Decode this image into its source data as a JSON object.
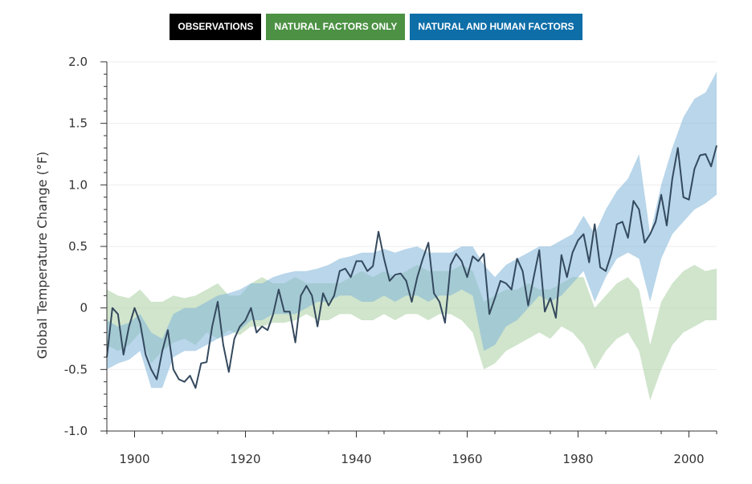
{
  "legend": [
    {
      "label": "OBSERVATIONS",
      "color": "#000000"
    },
    {
      "label": "NATURAL FACTORS ONLY",
      "color": "#4c9144"
    },
    {
      "label": "NATURAL AND HUMAN FACTORS",
      "color": "#0e6ea8"
    }
  ],
  "chart_data": {
    "type": "line",
    "title": "",
    "xlabel": "",
    "ylabel": "Global Temperature Change (°F)",
    "xlim": [
      1895,
      2005
    ],
    "ylim": [
      -1.0,
      2.0
    ],
    "xticks": [
      1900,
      1920,
      1940,
      1960,
      1980,
      2000
    ],
    "yticks": [
      2.0,
      1.5,
      1.0,
      0.5,
      0,
      -0.5,
      -1.0
    ],
    "ytick_labels": [
      "2.0",
      "1.5",
      "1.0",
      "0.5",
      "0",
      "-0.5",
      "-1.0"
    ],
    "grid": true,
    "colors": {
      "observations": "#34495e",
      "natural_band": "#a9cfa3",
      "combined_band": "#7fb4d9"
    },
    "series": [
      {
        "name": "OBSERVATIONS",
        "kind": "line",
        "x": [
          1895,
          1896,
          1897,
          1898,
          1899,
          1900,
          1901,
          1902,
          1903,
          1904,
          1905,
          1906,
          1907,
          1908,
          1909,
          1910,
          1911,
          1912,
          1913,
          1914,
          1915,
          1916,
          1917,
          1918,
          1919,
          1920,
          1921,
          1922,
          1923,
          1924,
          1925,
          1926,
          1927,
          1928,
          1929,
          1930,
          1931,
          1932,
          1933,
          1934,
          1935,
          1936,
          1937,
          1938,
          1939,
          1940,
          1941,
          1942,
          1943,
          1944,
          1945,
          1946,
          1947,
          1948,
          1949,
          1950,
          1951,
          1952,
          1953,
          1954,
          1955,
          1956,
          1957,
          1958,
          1959,
          1960,
          1961,
          1962,
          1963,
          1964,
          1965,
          1966,
          1967,
          1968,
          1969,
          1970,
          1971,
          1972,
          1973,
          1974,
          1975,
          1976,
          1977,
          1978,
          1979,
          1980,
          1981,
          1982,
          1983,
          1984,
          1985,
          1986,
          1987,
          1988,
          1989,
          1990,
          1991,
          1992,
          1993,
          1994,
          1995,
          1996,
          1997,
          1998,
          1999,
          2000,
          2001,
          2002,
          2003,
          2004,
          2005
        ],
        "y": [
          -0.4,
          0.0,
          -0.05,
          -0.38,
          -0.15,
          0.0,
          -0.12,
          -0.38,
          -0.5,
          -0.58,
          -0.35,
          -0.18,
          -0.5,
          -0.58,
          -0.6,
          -0.55,
          -0.65,
          -0.45,
          -0.44,
          -0.15,
          0.05,
          -0.3,
          -0.52,
          -0.25,
          -0.15,
          -0.1,
          0.0,
          -0.2,
          -0.15,
          -0.18,
          -0.05,
          0.15,
          -0.03,
          -0.03,
          -0.28,
          0.1,
          0.18,
          0.1,
          -0.15,
          0.12,
          0.02,
          0.1,
          0.3,
          0.32,
          0.25,
          0.38,
          0.38,
          0.3,
          0.34,
          0.62,
          0.4,
          0.22,
          0.27,
          0.28,
          0.22,
          0.05,
          0.25,
          0.4,
          0.53,
          0.12,
          0.05,
          -0.12,
          0.35,
          0.44,
          0.38,
          0.25,
          0.42,
          0.38,
          0.44,
          -0.05,
          0.08,
          0.22,
          0.2,
          0.15,
          0.4,
          0.3,
          0.02,
          0.25,
          0.47,
          -0.03,
          0.08,
          -0.08,
          0.43,
          0.25,
          0.45,
          0.55,
          0.6,
          0.37,
          0.68,
          0.33,
          0.3,
          0.44,
          0.68,
          0.7,
          0.57,
          0.87,
          0.8,
          0.53,
          0.6,
          0.7,
          0.92,
          0.67,
          1.05,
          1.3,
          0.9,
          0.88,
          1.13,
          1.24,
          1.25,
          1.15,
          1.32
        ]
      },
      {
        "name": "NATURAL FACTORS ONLY",
        "kind": "band",
        "x": [
          1895,
          1897,
          1899,
          1901,
          1903,
          1905,
          1907,
          1909,
          1911,
          1913,
          1915,
          1917,
          1919,
          1921,
          1923,
          1925,
          1927,
          1929,
          1931,
          1933,
          1935,
          1937,
          1939,
          1941,
          1943,
          1945,
          1947,
          1949,
          1951,
          1953,
          1955,
          1957,
          1959,
          1961,
          1963,
          1965,
          1967,
          1969,
          1971,
          1973,
          1975,
          1977,
          1979,
          1981,
          1983,
          1985,
          1987,
          1989,
          1991,
          1993,
          1995,
          1997,
          1999,
          2001,
          2003,
          2005
        ],
        "lower": [
          -0.3,
          -0.35,
          -0.3,
          -0.2,
          -0.45,
          -0.35,
          -0.28,
          -0.25,
          -0.3,
          -0.2,
          -0.25,
          -0.18,
          -0.22,
          -0.15,
          -0.15,
          -0.12,
          -0.12,
          -0.1,
          -0.05,
          -0.1,
          -0.1,
          -0.05,
          -0.05,
          -0.1,
          -0.1,
          -0.05,
          -0.1,
          -0.05,
          -0.05,
          -0.1,
          -0.05,
          -0.05,
          -0.1,
          -0.2,
          -0.5,
          -0.45,
          -0.35,
          -0.3,
          -0.25,
          -0.2,
          -0.25,
          -0.15,
          -0.2,
          -0.3,
          -0.5,
          -0.35,
          -0.25,
          -0.2,
          -0.35,
          -0.75,
          -0.5,
          -0.3,
          -0.2,
          -0.15,
          -0.1,
          -0.1
        ],
        "upper": [
          0.15,
          0.1,
          0.08,
          0.15,
          0.05,
          0.05,
          0.1,
          0.08,
          0.1,
          0.15,
          0.2,
          0.1,
          0.1,
          0.2,
          0.25,
          0.2,
          0.2,
          0.25,
          0.2,
          0.2,
          0.2,
          0.2,
          0.25,
          0.3,
          0.25,
          0.3,
          0.25,
          0.3,
          0.35,
          0.3,
          0.3,
          0.3,
          0.35,
          0.3,
          0.05,
          0.1,
          0.15,
          0.15,
          0.2,
          0.15,
          0.15,
          0.2,
          0.25,
          0.25,
          0.0,
          0.1,
          0.2,
          0.25,
          0.15,
          -0.3,
          0.05,
          0.2,
          0.3,
          0.35,
          0.3,
          0.32
        ]
      },
      {
        "name": "NATURAL AND HUMAN FACTORS",
        "kind": "band",
        "x": [
          1895,
          1897,
          1899,
          1901,
          1903,
          1905,
          1907,
          1909,
          1911,
          1913,
          1915,
          1917,
          1919,
          1921,
          1923,
          1925,
          1927,
          1929,
          1931,
          1933,
          1935,
          1937,
          1939,
          1941,
          1943,
          1945,
          1947,
          1949,
          1951,
          1953,
          1955,
          1957,
          1959,
          1961,
          1963,
          1965,
          1967,
          1969,
          1971,
          1973,
          1975,
          1977,
          1979,
          1981,
          1983,
          1985,
          1987,
          1989,
          1991,
          1993,
          1995,
          1997,
          1999,
          2001,
          2003,
          2005
        ],
        "lower": [
          -0.5,
          -0.45,
          -0.42,
          -0.35,
          -0.65,
          -0.65,
          -0.4,
          -0.35,
          -0.35,
          -0.3,
          -0.25,
          -0.22,
          -0.18,
          -0.1,
          -0.1,
          -0.05,
          -0.05,
          -0.05,
          0.0,
          0.05,
          0.05,
          0.1,
          0.1,
          0.05,
          0.05,
          0.1,
          0.05,
          0.1,
          0.1,
          0.05,
          0.1,
          0.1,
          0.15,
          0.1,
          -0.35,
          -0.3,
          -0.15,
          -0.1,
          0.0,
          0.1,
          0.05,
          0.1,
          0.2,
          0.3,
          0.05,
          0.25,
          0.4,
          0.45,
          0.4,
          0.05,
          0.4,
          0.6,
          0.7,
          0.8,
          0.85,
          0.92
        ],
        "upper": [
          -0.1,
          -0.15,
          -0.12,
          -0.05,
          -0.2,
          -0.25,
          -0.05,
          0.0,
          0.0,
          0.05,
          0.1,
          0.12,
          0.15,
          0.2,
          0.2,
          0.25,
          0.28,
          0.3,
          0.3,
          0.32,
          0.35,
          0.4,
          0.42,
          0.45,
          0.45,
          0.48,
          0.45,
          0.48,
          0.5,
          0.45,
          0.45,
          0.45,
          0.5,
          0.5,
          0.35,
          0.25,
          0.35,
          0.4,
          0.45,
          0.5,
          0.5,
          0.55,
          0.6,
          0.75,
          0.6,
          0.8,
          0.95,
          1.05,
          1.25,
          0.6,
          1.0,
          1.3,
          1.55,
          1.7,
          1.75,
          1.92
        ]
      }
    ]
  }
}
